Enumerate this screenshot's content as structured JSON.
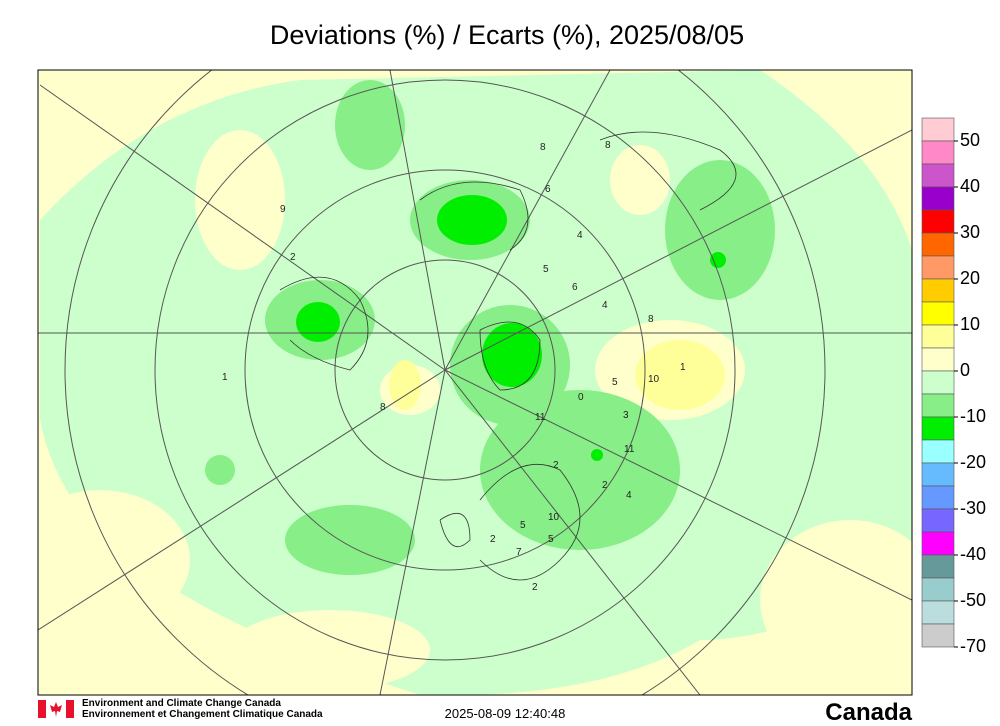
{
  "title": "Deviations (%) / Ecarts (%), 2025/08/05",
  "legend": {
    "colors": [
      "#ffccd4",
      "#ff88c8",
      "#cc55cc",
      "#9900cc",
      "#ff0000",
      "#ff6600",
      "#ff9966",
      "#ffcc00",
      "#ffff00",
      "#ffff99",
      "#ffffcc",
      "#ccffcc",
      "#88ee88",
      "#00ee00",
      "#99ffff",
      "#66bbff",
      "#6699ff",
      "#7766ff",
      "#ff00ff",
      "#669999",
      "#99cccc",
      "#bbdddd",
      "#cccccc"
    ],
    "labels": [
      "50",
      "40",
      "30",
      "20",
      "10",
      "0",
      "-10",
      "-20",
      "-30",
      "-40",
      "-50",
      "-70"
    ]
  },
  "stations": [
    "8",
    "8",
    "6",
    "4",
    "5",
    "6",
    "4",
    "8",
    "1",
    "2",
    "9",
    "10",
    "5",
    "0",
    "3",
    "11",
    "11",
    "2",
    "2",
    "4",
    "5",
    "10",
    "5",
    "7",
    "2",
    "8",
    "2",
    "1"
  ],
  "footer": {
    "agency_en": "Environment and Climate Change Canada",
    "agency_fr": "Environnement et Changement Climatique Canada",
    "timestamp": "2025-08-09 12:40:48",
    "wordmark": "Canada"
  }
}
